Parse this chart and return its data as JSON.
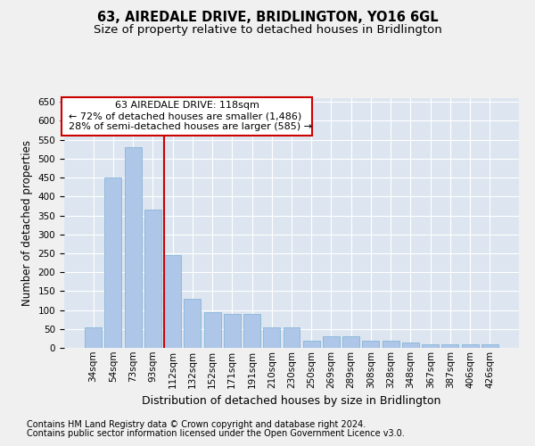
{
  "title": "63, AIREDALE DRIVE, BRIDLINGTON, YO16 6GL",
  "subtitle": "Size of property relative to detached houses in Bridlington",
  "xlabel": "Distribution of detached houses by size in Bridlington",
  "ylabel": "Number of detached properties",
  "categories": [
    "34sqm",
    "54sqm",
    "73sqm",
    "93sqm",
    "112sqm",
    "132sqm",
    "152sqm",
    "171sqm",
    "191sqm",
    "210sqm",
    "230sqm",
    "250sqm",
    "269sqm",
    "289sqm",
    "308sqm",
    "328sqm",
    "348sqm",
    "367sqm",
    "387sqm",
    "406sqm",
    "426sqm"
  ],
  "values": [
    55,
    450,
    530,
    365,
    245,
    130,
    95,
    90,
    90,
    55,
    55,
    20,
    30,
    30,
    20,
    20,
    15,
    10,
    10,
    10,
    10
  ],
  "bar_color": "#aec6e8",
  "bar_edge_color": "#7aafd4",
  "background_color": "#dde6f0",
  "fig_background": "#f0f0f0",
  "grid_color": "#ffffff",
  "annotation_box_color": "#ffffff",
  "annotation_box_edge": "#cc0000",
  "red_line_color": "#cc0000",
  "annotation_title": "63 AIREDALE DRIVE: 118sqm",
  "annotation_line1": "← 72% of detached houses are smaller (1,486)",
  "annotation_line2": "28% of semi-detached houses are larger (585) →",
  "ylim": [
    0,
    660
  ],
  "yticks": [
    0,
    50,
    100,
    150,
    200,
    250,
    300,
    350,
    400,
    450,
    500,
    550,
    600,
    650
  ],
  "footnote1": "Contains HM Land Registry data © Crown copyright and database right 2024.",
  "footnote2": "Contains public sector information licensed under the Open Government Licence v3.0.",
  "title_fontsize": 10.5,
  "subtitle_fontsize": 9.5,
  "xlabel_fontsize": 9,
  "ylabel_fontsize": 8.5,
  "tick_fontsize": 7.5,
  "annotation_fontsize": 8,
  "footnote_fontsize": 7
}
